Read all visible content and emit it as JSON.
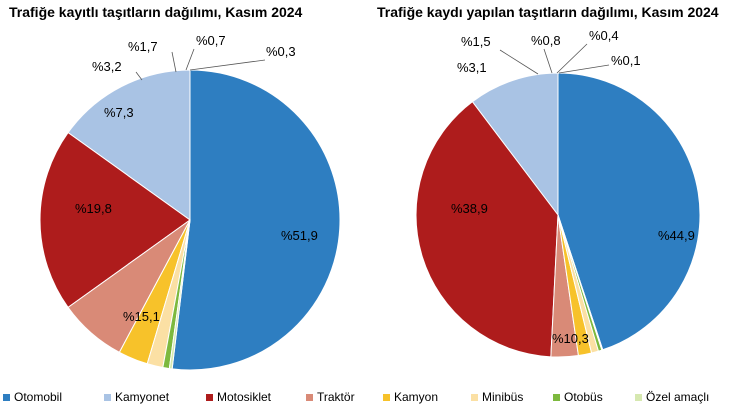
{
  "chart_data": [
    {
      "type": "pie",
      "title": "Trafiğe kayıtlı taşıtların dağılımı, Kasım 2024",
      "categories": [
        "Otomobil",
        "Kamyonet",
        "Motosiklet",
        "Traktör",
        "Kamyon",
        "Minibüs",
        "Otobüs",
        "Özel amaçlı"
      ],
      "values": [
        51.9,
        15.1,
        19.8,
        7.3,
        3.2,
        1.7,
        0.7,
        0.3
      ],
      "labels": [
        "%51,9",
        "%15,1",
        "%19,8",
        "%7,3",
        "%3,2",
        "%1,7",
        "%0,7",
        "%0,3"
      ]
    },
    {
      "type": "pie",
      "title": "Trafiğe kaydı yapılan taşıtların dağılımı, Kasım 2024",
      "categories": [
        "Otomobil",
        "Kamyonet",
        "Motosiklet",
        "Traktör",
        "Kamyon",
        "Minibüs",
        "Otobüs",
        "Özel amaçlı"
      ],
      "values": [
        44.9,
        10.3,
        38.9,
        3.1,
        1.5,
        0.8,
        0.4,
        0.1
      ],
      "labels": [
        "%44,9",
        "%10,3",
        "%38,9",
        "%3,1",
        "%1,5",
        "%0,8",
        "%0,4",
        "%0,1"
      ]
    }
  ],
  "legend": {
    "placement": "bottom",
    "items": [
      "Otomobil",
      "Kamyonet",
      "Motosiklet",
      "Traktör",
      "Kamyon",
      "Minibüs",
      "Otobüs",
      "Özel amaçlı"
    ]
  },
  "colors": [
    "#2e7ec1",
    "#a9c3e4",
    "#ae1c1c",
    "#d98a77",
    "#f7c22a",
    "#fbe0a4",
    "#7db93e",
    "#d6e8b0"
  ]
}
